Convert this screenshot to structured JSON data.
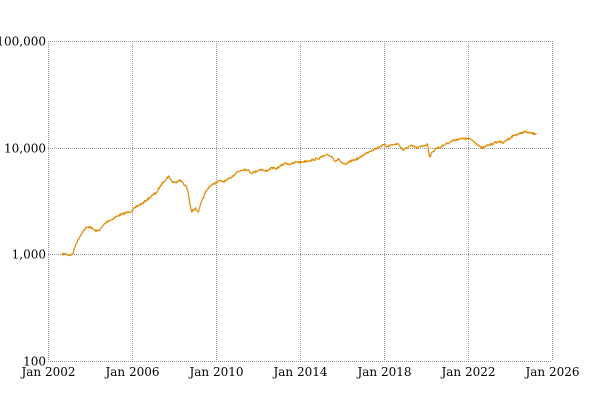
{
  "chart_data": {
    "type": "line",
    "title": "",
    "xlabel": "",
    "ylabel": "",
    "y_scale": "log",
    "ylim": [
      100,
      100000
    ],
    "xlim": [
      "2002-01",
      "2026-01"
    ],
    "grid": true,
    "y_ticks": [
      {
        "value": 100,
        "label": "100"
      },
      {
        "value": 1000,
        "label": "1,000"
      },
      {
        "value": 10000,
        "label": "10,000"
      },
      {
        "value": 100000,
        "label": "100,000"
      }
    ],
    "x_ticks": [
      {
        "value": "2002-01",
        "label": "Jan 2002"
      },
      {
        "value": "2006-01",
        "label": "Jan 2006"
      },
      {
        "value": "2010-01",
        "label": "Jan 2010"
      },
      {
        "value": "2014-01",
        "label": "Jan 2014"
      },
      {
        "value": "2018-01",
        "label": "Jan 2018"
      },
      {
        "value": "2022-01",
        "label": "Jan 2022"
      },
      {
        "value": "2026-01",
        "label": "Jan 2026"
      }
    ],
    "series": [
      {
        "color": "#E08A00",
        "points": [
          [
            "2002-09",
            1000
          ],
          [
            "2002-11",
            1010
          ],
          [
            "2003-01",
            980
          ],
          [
            "2003-03",
            1000
          ],
          [
            "2003-05",
            1250
          ],
          [
            "2003-07",
            1450
          ],
          [
            "2003-09",
            1650
          ],
          [
            "2003-11",
            1780
          ],
          [
            "2004-01",
            1820
          ],
          [
            "2004-03",
            1700
          ],
          [
            "2004-05",
            1650
          ],
          [
            "2004-07",
            1720
          ],
          [
            "2004-09",
            1900
          ],
          [
            "2004-11",
            2050
          ],
          [
            "2005-01",
            2100
          ],
          [
            "2005-03",
            2200
          ],
          [
            "2005-05",
            2300
          ],
          [
            "2005-07",
            2380
          ],
          [
            "2005-09",
            2420
          ],
          [
            "2005-11",
            2500
          ],
          [
            "2006-01",
            2550
          ],
          [
            "2006-03",
            2750
          ],
          [
            "2006-05",
            2900
          ],
          [
            "2006-07",
            3000
          ],
          [
            "2006-09",
            3200
          ],
          [
            "2006-11",
            3400
          ],
          [
            "2007-01",
            3600
          ],
          [
            "2007-03",
            3800
          ],
          [
            "2007-05",
            4300
          ],
          [
            "2007-07",
            4800
          ],
          [
            "2007-09",
            5200
          ],
          [
            "2007-10",
            5400
          ],
          [
            "2007-12",
            4800
          ],
          [
            "2008-02",
            4700
          ],
          [
            "2008-04",
            5000
          ],
          [
            "2008-06",
            4700
          ],
          [
            "2008-08",
            4300
          ],
          [
            "2008-09",
            3900
          ],
          [
            "2008-10",
            3000
          ],
          [
            "2008-11",
            2500
          ],
          [
            "2008-12",
            2600
          ],
          [
            "2009-01",
            2700
          ],
          [
            "2009-03",
            2500
          ],
          [
            "2009-05",
            3200
          ],
          [
            "2009-07",
            3800
          ],
          [
            "2009-09",
            4300
          ],
          [
            "2009-11",
            4500
          ],
          [
            "2010-01",
            4700
          ],
          [
            "2010-03",
            4900
          ],
          [
            "2010-05",
            4800
          ],
          [
            "2010-07",
            4900
          ],
          [
            "2010-09",
            5200
          ],
          [
            "2010-11",
            5500
          ],
          [
            "2011-01",
            5900
          ],
          [
            "2011-03",
            6100
          ],
          [
            "2011-05",
            6300
          ],
          [
            "2011-07",
            6200
          ],
          [
            "2011-09",
            5800
          ],
          [
            "2011-11",
            5900
          ],
          [
            "2012-01",
            6100
          ],
          [
            "2012-03",
            6300
          ],
          [
            "2012-05",
            6000
          ],
          [
            "2012-07",
            6200
          ],
          [
            "2012-09",
            6500
          ],
          [
            "2012-11",
            6300
          ],
          [
            "2013-01",
            6600
          ],
          [
            "2013-03",
            6900
          ],
          [
            "2013-05",
            7200
          ],
          [
            "2013-07",
            7000
          ],
          [
            "2013-09",
            7100
          ],
          [
            "2013-11",
            7400
          ],
          [
            "2014-01",
            7300
          ],
          [
            "2014-03",
            7400
          ],
          [
            "2014-05",
            7500
          ],
          [
            "2014-07",
            7600
          ],
          [
            "2014-09",
            7700
          ],
          [
            "2014-11",
            7900
          ],
          [
            "2015-01",
            8100
          ],
          [
            "2015-03",
            8400
          ],
          [
            "2015-05",
            8500
          ],
          [
            "2015-07",
            8300
          ],
          [
            "2015-09",
            7500
          ],
          [
            "2015-11",
            7800
          ],
          [
            "2016-01",
            7200
          ],
          [
            "2016-03",
            6900
          ],
          [
            "2016-05",
            7300
          ],
          [
            "2016-07",
            7600
          ],
          [
            "2016-09",
            7800
          ],
          [
            "2016-11",
            8000
          ],
          [
            "2017-01",
            8500
          ],
          [
            "2017-03",
            8900
          ],
          [
            "2017-05",
            9300
          ],
          [
            "2017-07",
            9600
          ],
          [
            "2017-09",
            9900
          ],
          [
            "2017-11",
            10300
          ],
          [
            "2018-01",
            10600
          ],
          [
            "2018-03",
            10300
          ],
          [
            "2018-05",
            10600
          ],
          [
            "2018-07",
            10700
          ],
          [
            "2018-09",
            10900
          ],
          [
            "2018-11",
            10000
          ],
          [
            "2018-12",
            9400
          ],
          [
            "2019-02",
            10000
          ],
          [
            "2019-04",
            10400
          ],
          [
            "2019-06",
            10300
          ],
          [
            "2019-08",
            9900
          ],
          [
            "2019-10",
            10200
          ],
          [
            "2019-12",
            10500
          ],
          [
            "2020-02",
            10700
          ],
          [
            "2020-03",
            8200
          ],
          [
            "2020-05",
            9200
          ],
          [
            "2020-07",
            9900
          ],
          [
            "2020-09",
            10100
          ],
          [
            "2020-11",
            10500
          ],
          [
            "2021-01",
            11000
          ],
          [
            "2021-03",
            11300
          ],
          [
            "2021-05",
            11800
          ],
          [
            "2021-07",
            12000
          ],
          [
            "2021-09",
            12100
          ],
          [
            "2021-11",
            12200
          ],
          [
            "2022-01",
            12100
          ],
          [
            "2022-03",
            11900
          ],
          [
            "2022-05",
            11200
          ],
          [
            "2022-07",
            10600
          ],
          [
            "2022-09",
            9800
          ],
          [
            "2022-11",
            10300
          ],
          [
            "2023-01",
            10600
          ],
          [
            "2023-03",
            10900
          ],
          [
            "2023-05",
            11200
          ],
          [
            "2023-07",
            11500
          ],
          [
            "2023-09",
            11000
          ],
          [
            "2023-11",
            11800
          ],
          [
            "2024-01",
            12300
          ],
          [
            "2024-03",
            13000
          ],
          [
            "2024-05",
            13300
          ],
          [
            "2024-07",
            13600
          ],
          [
            "2024-09",
            14100
          ],
          [
            "2024-11",
            13900
          ],
          [
            "2025-01",
            13700
          ],
          [
            "2025-03",
            13500
          ],
          [
            "2025-04",
            13700
          ]
        ]
      }
    ]
  }
}
